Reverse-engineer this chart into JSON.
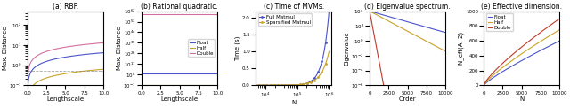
{
  "fig_width": 6.4,
  "fig_height": 1.22,
  "dpi": 100,
  "rbf": {
    "xlabel": "Lengthscale",
    "ylabel": "Max. Distance",
    "caption": "(a) RBF.",
    "xlim": [
      0.0,
      10.0
    ],
    "ylim": [
      0.1,
      500.0
    ],
    "xticks": [
      0.0,
      2.5,
      5.0,
      7.5,
      10.0
    ],
    "dashed_y": 0.5,
    "colors": {
      "float": "#d16fa0",
      "half": "#c9a227",
      "double": "#4a54c8"
    },
    "line_labels": [
      "Float",
      "Half",
      "Double"
    ]
  },
  "rq": {
    "xlabel": "Lengthscale",
    "ylabel": "Max. Distance",
    "caption": "(b) Rational quadratic.",
    "xlim": [
      0.0,
      10.0
    ],
    "ylim_low": 0.1,
    "ylim_high": 1e+62,
    "xticks": [
      0.0,
      2.5,
      5.0,
      7.5,
      10.0
    ],
    "float_val": 500000000.0,
    "half_val": 0.11,
    "double_val": 2e+59,
    "colors": {
      "float": "#4a54c8",
      "half": "#c9a227",
      "double": "#d16fa0"
    },
    "legend_labels": [
      "Float",
      "Half",
      "Double"
    ]
  },
  "mvm": {
    "xlabel": "N",
    "ylabel": "Time (s)",
    "caption": "(c) Time of MVMs.",
    "ylim": [
      0.0,
      2.2
    ],
    "colors": {
      "full": "#4a54c8",
      "sparse": "#c9a227"
    },
    "legend_labels": [
      "Full Matmul",
      "Sparsified Matmul"
    ],
    "yticks": [
      0.0,
      0.5,
      1.0,
      1.5,
      2.0
    ]
  },
  "eigen": {
    "xlabel": "Order",
    "ylabel": "Eigenvalue",
    "caption": "(d) Eigenvalue spectrum.",
    "xlim": [
      0,
      10000
    ],
    "ylim": [
      1e-06,
      10000.0
    ],
    "xticks": [
      0,
      2500,
      5000,
      7500,
      10000
    ],
    "xtick_labels": [
      "0",
      "2500",
      "5000",
      "7500",
      "10000"
    ],
    "colors": {
      "float": "#4a54c8",
      "half": "#c9a227",
      "double": "#c0392b"
    }
  },
  "effdim": {
    "xlabel": "N",
    "ylabel": "N_eff(A, 2)",
    "caption": "(e) Effective dimension.",
    "xlim": [
      0,
      10000
    ],
    "xticks": [
      0,
      2500,
      5000,
      7500,
      10000
    ],
    "colors": {
      "float": "#4a54c8",
      "half": "#c9a227",
      "double": "#c0392b"
    },
    "legend_labels": [
      "Float",
      "Half",
      "Double"
    ]
  }
}
